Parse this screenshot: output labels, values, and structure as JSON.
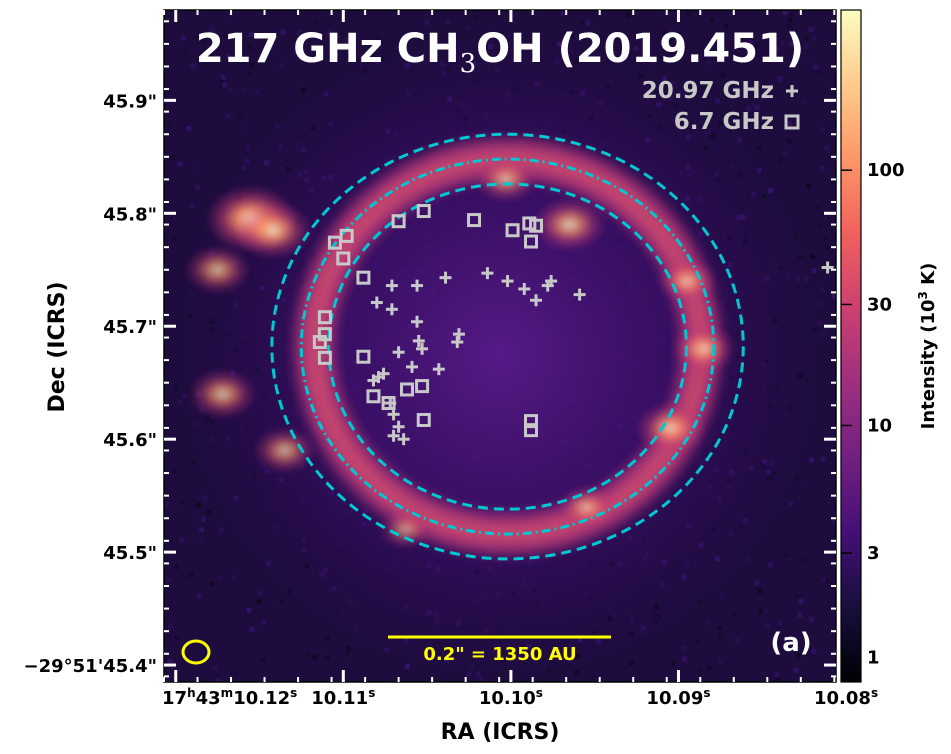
{
  "chart_data": {
    "type": "heatmap",
    "title_parts": {
      "pre": "217 GHz CH",
      "sub": "3",
      "post": "OH (2019.451)"
    },
    "panel_label": "(a)",
    "xlabel": "RA (ICRS)",
    "ylabel": "Dec (ICRS)",
    "x_ticks": [
      {
        "value": 10.12,
        "parts": {
          "h": "17",
          "hu": "h",
          "m": "43",
          "mu": "m",
          "s": "10.12",
          "su": "s"
        }
      },
      {
        "value": 10.11,
        "label": "10.11",
        "sup": "s"
      },
      {
        "value": 10.1,
        "label": "10.10",
        "sup": "s"
      },
      {
        "value": 10.09,
        "label": "10.09",
        "sup": "s"
      },
      {
        "value": 10.08,
        "label": "10.08",
        "sup": "s"
      }
    ],
    "y_ticks": [
      {
        "value": 45.4,
        "label": "−29°51'45.4\""
      },
      {
        "value": 45.5,
        "label": "45.5\""
      },
      {
        "value": 45.6,
        "label": "45.6\""
      },
      {
        "value": 45.7,
        "label": "45.7\""
      },
      {
        "value": 45.8,
        "label": "45.8\""
      },
      {
        "value": 45.9,
        "label": "45.9\""
      }
    ],
    "xlim": [
      10.1207,
      10.0806
    ],
    "ylim": [
      45.98,
      45.385
    ],
    "colorbar": {
      "label_pre": "Intensity (10",
      "label_sup": "3",
      "label_post": " K)",
      "scale": "log-like",
      "ticks": [
        {
          "label": "1",
          "value": 1
        },
        {
          "label": "3",
          "value": 3
        },
        {
          "label": "10",
          "value": 10
        },
        {
          "label": "30",
          "value": 30
        },
        {
          "label": "100",
          "value": 100
        }
      ],
      "colormap": "magma",
      "stops": [
        "#000004",
        "#180f3d",
        "#440f76",
        "#721f81",
        "#9e2f7f",
        "#cd4071",
        "#f1605d",
        "#fd9668",
        "#feca8d",
        "#fcfdbf"
      ]
    },
    "legend": [
      {
        "label": "20.97 GHz",
        "marker": "plus"
      },
      {
        "label": "6.7 GHz",
        "marker": "square"
      }
    ],
    "scale_bar": {
      "label": "0.2\" = 1350 AU"
    },
    "beam": {
      "shape": "ellipse"
    },
    "rings": {
      "center": [
        10.1002,
        45.682
      ],
      "outer_radius_dec": 0.188,
      "inner_radius_dec": 0.144,
      "mid_radius_dec": 0.166
    },
    "emission_blobs": [
      {
        "ra": 10.1155,
        "dec": 45.795,
        "intensity": 1.0
      },
      {
        "ra": 10.1142,
        "dec": 45.785,
        "intensity": 0.75
      },
      {
        "ra": 10.1172,
        "dec": 45.64,
        "intensity": 0.55
      },
      {
        "ra": 10.1135,
        "dec": 45.59,
        "intensity": 0.45
      },
      {
        "ra": 10.1175,
        "dec": 45.75,
        "intensity": 0.5
      },
      {
        "ra": 10.0965,
        "dec": 45.79,
        "intensity": 0.65
      },
      {
        "ra": 10.1003,
        "dec": 45.83,
        "intensity": 0.45
      },
      {
        "ra": 10.0905,
        "dec": 45.61,
        "intensity": 0.6
      },
      {
        "ra": 10.0885,
        "dec": 45.68,
        "intensity": 0.5
      },
      {
        "ra": 10.0895,
        "dec": 45.74,
        "intensity": 0.4
      },
      {
        "ra": 10.0955,
        "dec": 45.54,
        "intensity": 0.35
      },
      {
        "ra": 10.1063,
        "dec": 45.52,
        "intensity": 0.25
      }
    ],
    "masers_20_97GHz": [
      [
        10.1064,
        45.6
      ],
      [
        10.107,
        45.603
      ],
      [
        10.1067,
        45.611
      ],
      [
        10.107,
        45.622
      ],
      [
        10.1072,
        45.632
      ],
      [
        10.1082,
        45.652
      ],
      [
        10.1079,
        45.655
      ],
      [
        10.1076,
        45.658
      ],
      [
        10.1059,
        45.664
      ],
      [
        10.1043,
        45.662
      ],
      [
        10.1067,
        45.677
      ],
      [
        10.1053,
        45.68
      ],
      [
        10.1055,
        45.687
      ],
      [
        10.1032,
        45.686
      ],
      [
        10.1031,
        45.693
      ],
      [
        10.1056,
        45.704
      ],
      [
        10.1071,
        45.715
      ],
      [
        10.108,
        45.721
      ],
      [
        10.1071,
        45.736
      ],
      [
        10.1056,
        45.736
      ],
      [
        10.1039,
        45.743
      ],
      [
        10.1014,
        45.747
      ],
      [
        10.1002,
        45.74
      ],
      [
        10.0992,
        45.733
      ],
      [
        10.0985,
        45.723
      ],
      [
        10.0978,
        45.736
      ],
      [
        10.0976,
        45.74
      ],
      [
        10.0959,
        45.728
      ],
      [
        10.0811,
        45.752
      ]
    ],
    "masers_6_7GHz": [
      [
        10.0988,
        45.608
      ],
      [
        10.0988,
        45.616
      ],
      [
        10.1052,
        45.617
      ],
      [
        10.1073,
        45.632
      ],
      [
        10.1082,
        45.638
      ],
      [
        10.1062,
        45.644
      ],
      [
        10.1053,
        45.647
      ],
      [
        10.1088,
        45.673
      ],
      [
        10.1111,
        45.672
      ],
      [
        10.1114,
        45.686
      ],
      [
        10.1111,
        45.693
      ],
      [
        10.1111,
        45.708
      ],
      [
        10.1088,
        45.743
      ],
      [
        10.11,
        45.76
      ],
      [
        10.1105,
        45.774
      ],
      [
        10.1098,
        45.78
      ],
      [
        10.1067,
        45.793
      ],
      [
        10.1052,
        45.802
      ],
      [
        10.1022,
        45.794
      ],
      [
        10.0999,
        45.785
      ],
      [
        10.0989,
        45.791
      ],
      [
        10.0985,
        45.789
      ],
      [
        10.0988,
        45.775
      ]
    ]
  }
}
